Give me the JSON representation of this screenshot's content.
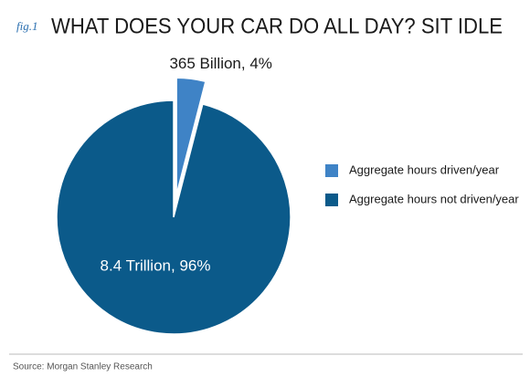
{
  "chart_data": {
    "type": "pie",
    "figure_label": "fig.1",
    "title": "WHAT DOES YOUR CAR DO ALL DAY? SIT IDLE",
    "categories": [
      "Aggregate hours driven/year",
      "Aggregate hours not driven/year"
    ],
    "values": [
      4,
      96
    ],
    "value_labels": [
      "365 Billion, 4%",
      "8.4 Trillion, 96%"
    ],
    "colors": [
      "#3f83c6",
      "#0b5a8a"
    ],
    "explode": [
      true,
      false
    ],
    "legend": "right",
    "source": "Source: Morgan Stanley Research"
  }
}
